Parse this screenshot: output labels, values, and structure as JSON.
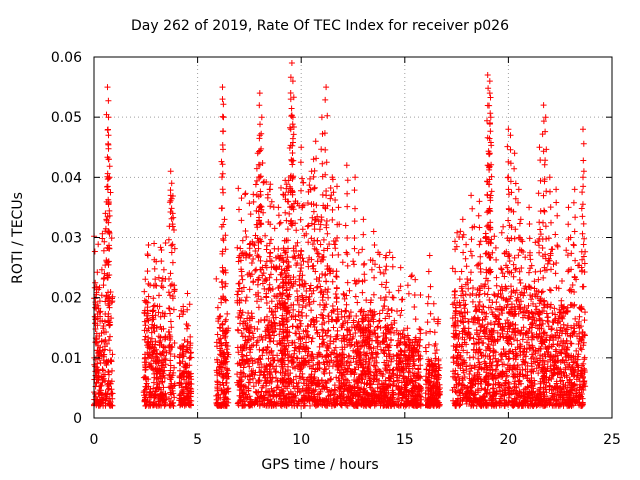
{
  "chart_data": {
    "type": "scatter",
    "title": "Day 262 of 2019, Rate Of TEC Index for receiver p026",
    "xlabel": "GPS time / hours",
    "ylabel": "ROTI / TECUs",
    "xlim": [
      0,
      25
    ],
    "ylim": [
      0,
      0.06
    ],
    "xticks": [
      "0",
      "5",
      "10",
      "15",
      "20",
      "25"
    ],
    "yticks": [
      "0",
      "0.01",
      "0.02",
      "0.03",
      "0.04",
      "0.05",
      "0.06"
    ],
    "grid": true,
    "marker": "+",
    "color": "#ff0000",
    "segments": [
      {
        "x": [
          0.0,
          0.9
        ],
        "ymax": 0.021,
        "peaks": [
          [
            0.65,
            0.055
          ],
          [
            0.7,
            0.05
          ],
          [
            0.7,
            0.047
          ],
          [
            0.7,
            0.043
          ],
          [
            0.75,
            0.04
          ],
          [
            0.55,
            0.034
          ],
          [
            0.6,
            0.033
          ],
          [
            0.5,
            0.024
          ]
        ]
      },
      {
        "x": [
          2.4,
          3.5
        ],
        "ymax": 0.02,
        "peaks": [
          [
            2.9,
            0.029
          ],
          [
            2.6,
            0.027
          ],
          [
            3.0,
            0.026
          ]
        ]
      },
      {
        "x": [
          3.6,
          3.9
        ],
        "ymax": 0.03,
        "peaks": [
          [
            3.7,
            0.041
          ],
          [
            3.75,
            0.039
          ],
          [
            3.7,
            0.037
          ],
          [
            3.8,
            0.034
          ]
        ]
      },
      {
        "x": [
          4.1,
          4.7
        ],
        "ymax": 0.013,
        "peaks": [
          [
            4.5,
            0.018
          ]
        ]
      },
      {
        "x": [
          5.9,
          6.5
        ],
        "ymax": 0.017,
        "peaks": [
          [
            6.2,
            0.055
          ],
          [
            6.2,
            0.053
          ],
          [
            6.3,
            0.033
          ],
          [
            6.2,
            0.025
          ]
        ]
      },
      {
        "x": [
          6.9,
          9.4
        ],
        "ymax": 0.03,
        "peaks": [
          [
            8.0,
            0.054
          ],
          [
            8.1,
            0.05
          ],
          [
            8.0,
            0.047
          ],
          [
            7.9,
            0.044
          ],
          [
            8.5,
            0.038
          ],
          [
            8.9,
            0.035
          ]
        ]
      },
      {
        "x": [
          9.0,
          11.8
        ],
        "ymax": 0.03,
        "peaks": [
          [
            9.55,
            0.059
          ],
          [
            9.6,
            0.056
          ],
          [
            9.5,
            0.053
          ],
          [
            9.6,
            0.05
          ],
          [
            9.5,
            0.048
          ],
          [
            10.0,
            0.045
          ],
          [
            11.2,
            0.055
          ],
          [
            11.0,
            0.05
          ],
          [
            10.7,
            0.046
          ],
          [
            10.6,
            0.043
          ],
          [
            10.5,
            0.041
          ],
          [
            11.5,
            0.04
          ],
          [
            11.2,
            0.037
          ],
          [
            11.8,
            0.035
          ]
        ]
      },
      {
        "x": [
          11.8,
          14.5
        ],
        "ymax": 0.018,
        "peaks": [
          [
            12.2,
            0.042
          ],
          [
            12.6,
            0.04
          ],
          [
            13.0,
            0.033
          ],
          [
            13.5,
            0.031
          ],
          [
            14.1,
            0.027
          ]
        ]
      },
      {
        "x": [
          14.6,
          15.8
        ],
        "ymax": 0.014,
        "peaks": [
          [
            14.8,
            0.025
          ],
          [
            15.5,
            0.023
          ]
        ]
      },
      {
        "x": [
          16.0,
          16.7
        ],
        "ymax": 0.01,
        "peaks": [
          [
            16.2,
            0.027
          ],
          [
            16.4,
            0.019
          ]
        ]
      },
      {
        "x": [
          17.3,
          19.4
        ],
        "ymax": 0.022,
        "peaks": [
          [
            17.8,
            0.033
          ],
          [
            18.2,
            0.037
          ],
          [
            18.6,
            0.036
          ],
          [
            18.9,
            0.03
          ],
          [
            19.0,
            0.057
          ],
          [
            19.1,
            0.056
          ],
          [
            19.1,
            0.054
          ],
          [
            19.15,
            0.05
          ],
          [
            19.1,
            0.044
          ],
          [
            19.0,
            0.042
          ]
        ]
      },
      {
        "x": [
          19.4,
          21.6
        ],
        "ymax": 0.022,
        "peaks": [
          [
            20.0,
            0.048
          ],
          [
            20.1,
            0.047
          ],
          [
            20.3,
            0.044
          ],
          [
            20.0,
            0.04
          ],
          [
            20.5,
            0.038
          ],
          [
            21.0,
            0.035
          ],
          [
            20.6,
            0.033
          ],
          [
            21.5,
            0.045
          ],
          [
            21.7,
            0.052
          ],
          [
            21.8,
            0.05
          ]
        ]
      },
      {
        "x": [
          21.6,
          23.7
        ],
        "ymax": 0.019,
        "peaks": [
          [
            22.0,
            0.04
          ],
          [
            22.3,
            0.038
          ],
          [
            22.9,
            0.035
          ],
          [
            23.2,
            0.038
          ],
          [
            23.6,
            0.048
          ],
          [
            23.6,
            0.04
          ],
          [
            23.0,
            0.03
          ]
        ]
      }
    ]
  }
}
